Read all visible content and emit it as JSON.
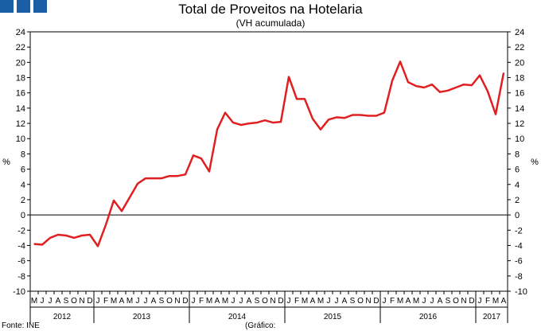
{
  "header": {
    "title": "Total de Proveitos na Hotelaria",
    "subtitle": "(VH acumulada)"
  },
  "footer": {
    "source": "Fonte: INE",
    "note": "(Gráfico:"
  },
  "colors": {
    "line": "#e02020",
    "logo": "#1a5fa5"
  },
  "logo_icon": "ine-logo-blocks",
  "chart_data": {
    "type": "line",
    "title": "Total de Proveitos na Hotelaria",
    "subtitle": "(VH acumulada)",
    "ylabel": "%",
    "ylim": [
      -10,
      24
    ],
    "yticks": [
      -10,
      -8,
      -6,
      -4,
      -2,
      0,
      2,
      4,
      6,
      8,
      10,
      12,
      14,
      16,
      18,
      20,
      22,
      24
    ],
    "grid": false,
    "legend": "none",
    "month_labels": [
      "M",
      "J",
      "J",
      "A",
      "S",
      "O",
      "N",
      "D",
      "J",
      "F",
      "M",
      "A",
      "M",
      "J",
      "J",
      "A",
      "S",
      "O",
      "N",
      "D",
      "J",
      "F",
      "M",
      "A",
      "M",
      "J",
      "J",
      "A",
      "S",
      "O",
      "N",
      "D",
      "J",
      "F",
      "M",
      "A",
      "M",
      "J",
      "J",
      "A",
      "S",
      "O",
      "N",
      "D",
      "J",
      "F",
      "M",
      "A",
      "M",
      "J",
      "J",
      "A",
      "S",
      "O",
      "N",
      "D",
      "J",
      "F",
      "M",
      "A"
    ],
    "year_labels": [
      {
        "year": "2012",
        "start": 0,
        "end": 7
      },
      {
        "year": "2013",
        "start": 8,
        "end": 19
      },
      {
        "year": "2014",
        "start": 20,
        "end": 31
      },
      {
        "year": "2015",
        "start": 32,
        "end": 43
      },
      {
        "year": "2016",
        "start": 44,
        "end": 55
      },
      {
        "year": "2017",
        "start": 56,
        "end": 59
      }
    ],
    "series": [
      {
        "values": [
          -3.8,
          -3.9,
          -3.0,
          -2.6,
          -2.7,
          -3.0,
          -2.7,
          -2.6,
          -4.1,
          -1.3,
          1.9,
          0.5,
          2.3,
          4.1,
          4.8,
          4.8,
          4.8,
          5.1,
          5.1,
          5.3,
          7.8,
          7.4,
          5.7,
          11.2,
          13.4,
          12.1,
          11.8,
          12.0,
          12.1,
          12.4,
          12.1,
          12.2,
          18.1,
          15.2,
          15.2,
          12.6,
          11.2,
          12.5,
          12.8,
          12.7,
          13.1,
          13.1,
          13.0,
          13.0,
          13.4,
          17.6,
          20.1,
          17.4,
          16.9,
          16.7,
          17.1,
          16.1,
          16.3,
          16.7,
          17.1,
          17.0,
          18.3,
          16.2,
          13.2,
          18.6
        ]
      }
    ]
  }
}
